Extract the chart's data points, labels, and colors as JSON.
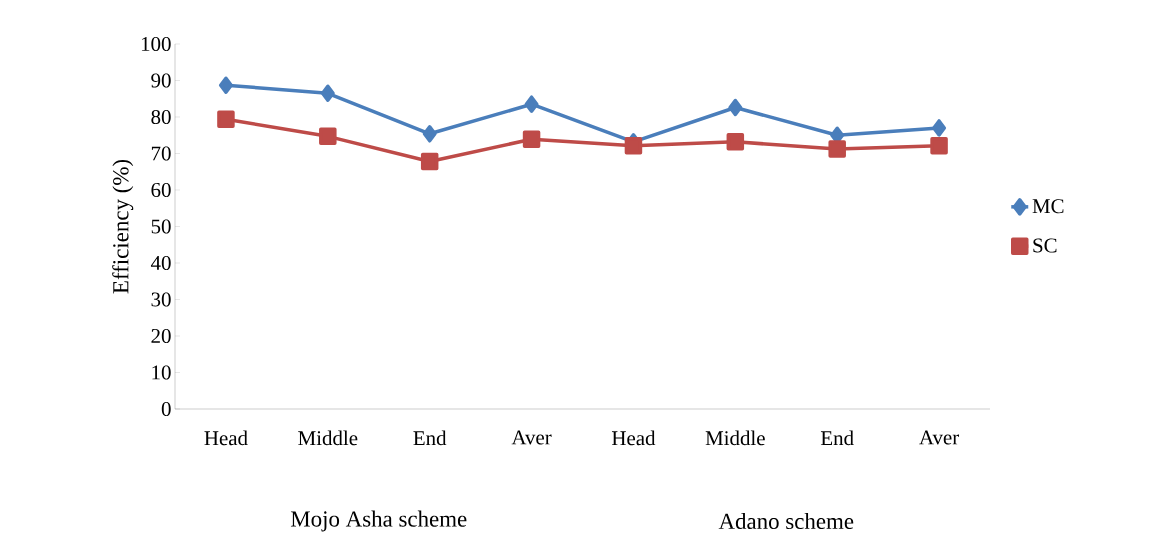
{
  "chart_data": {
    "type": "line",
    "ylabel": "Efficiency (%)",
    "categories": [
      "Head",
      "Middle",
      "End",
      "Aver",
      "Head",
      "Middle",
      "End",
      "Aver"
    ],
    "series": [
      {
        "name": "MC",
        "color": "#4a7ebb",
        "marker": "diamond",
        "values": [
          88.7,
          86.5,
          75.4,
          83.5,
          73.2,
          82.6,
          75.0,
          77.0
        ]
      },
      {
        "name": "SC",
        "color": "#be4b48",
        "marker": "square",
        "values": [
          79.4,
          74.7,
          67.8,
          73.9,
          72.1,
          73.2,
          71.2,
          72.1
        ]
      }
    ],
    "annotations": [
      "Mojo Asha scheme",
      "Adano scheme"
    ],
    "ylim": [
      0,
      100
    ],
    "yticks": [
      0,
      10,
      20,
      30,
      40,
      50,
      60,
      70,
      80,
      90,
      100
    ],
    "grid": false,
    "legend": "right",
    "line_style": "solid"
  }
}
